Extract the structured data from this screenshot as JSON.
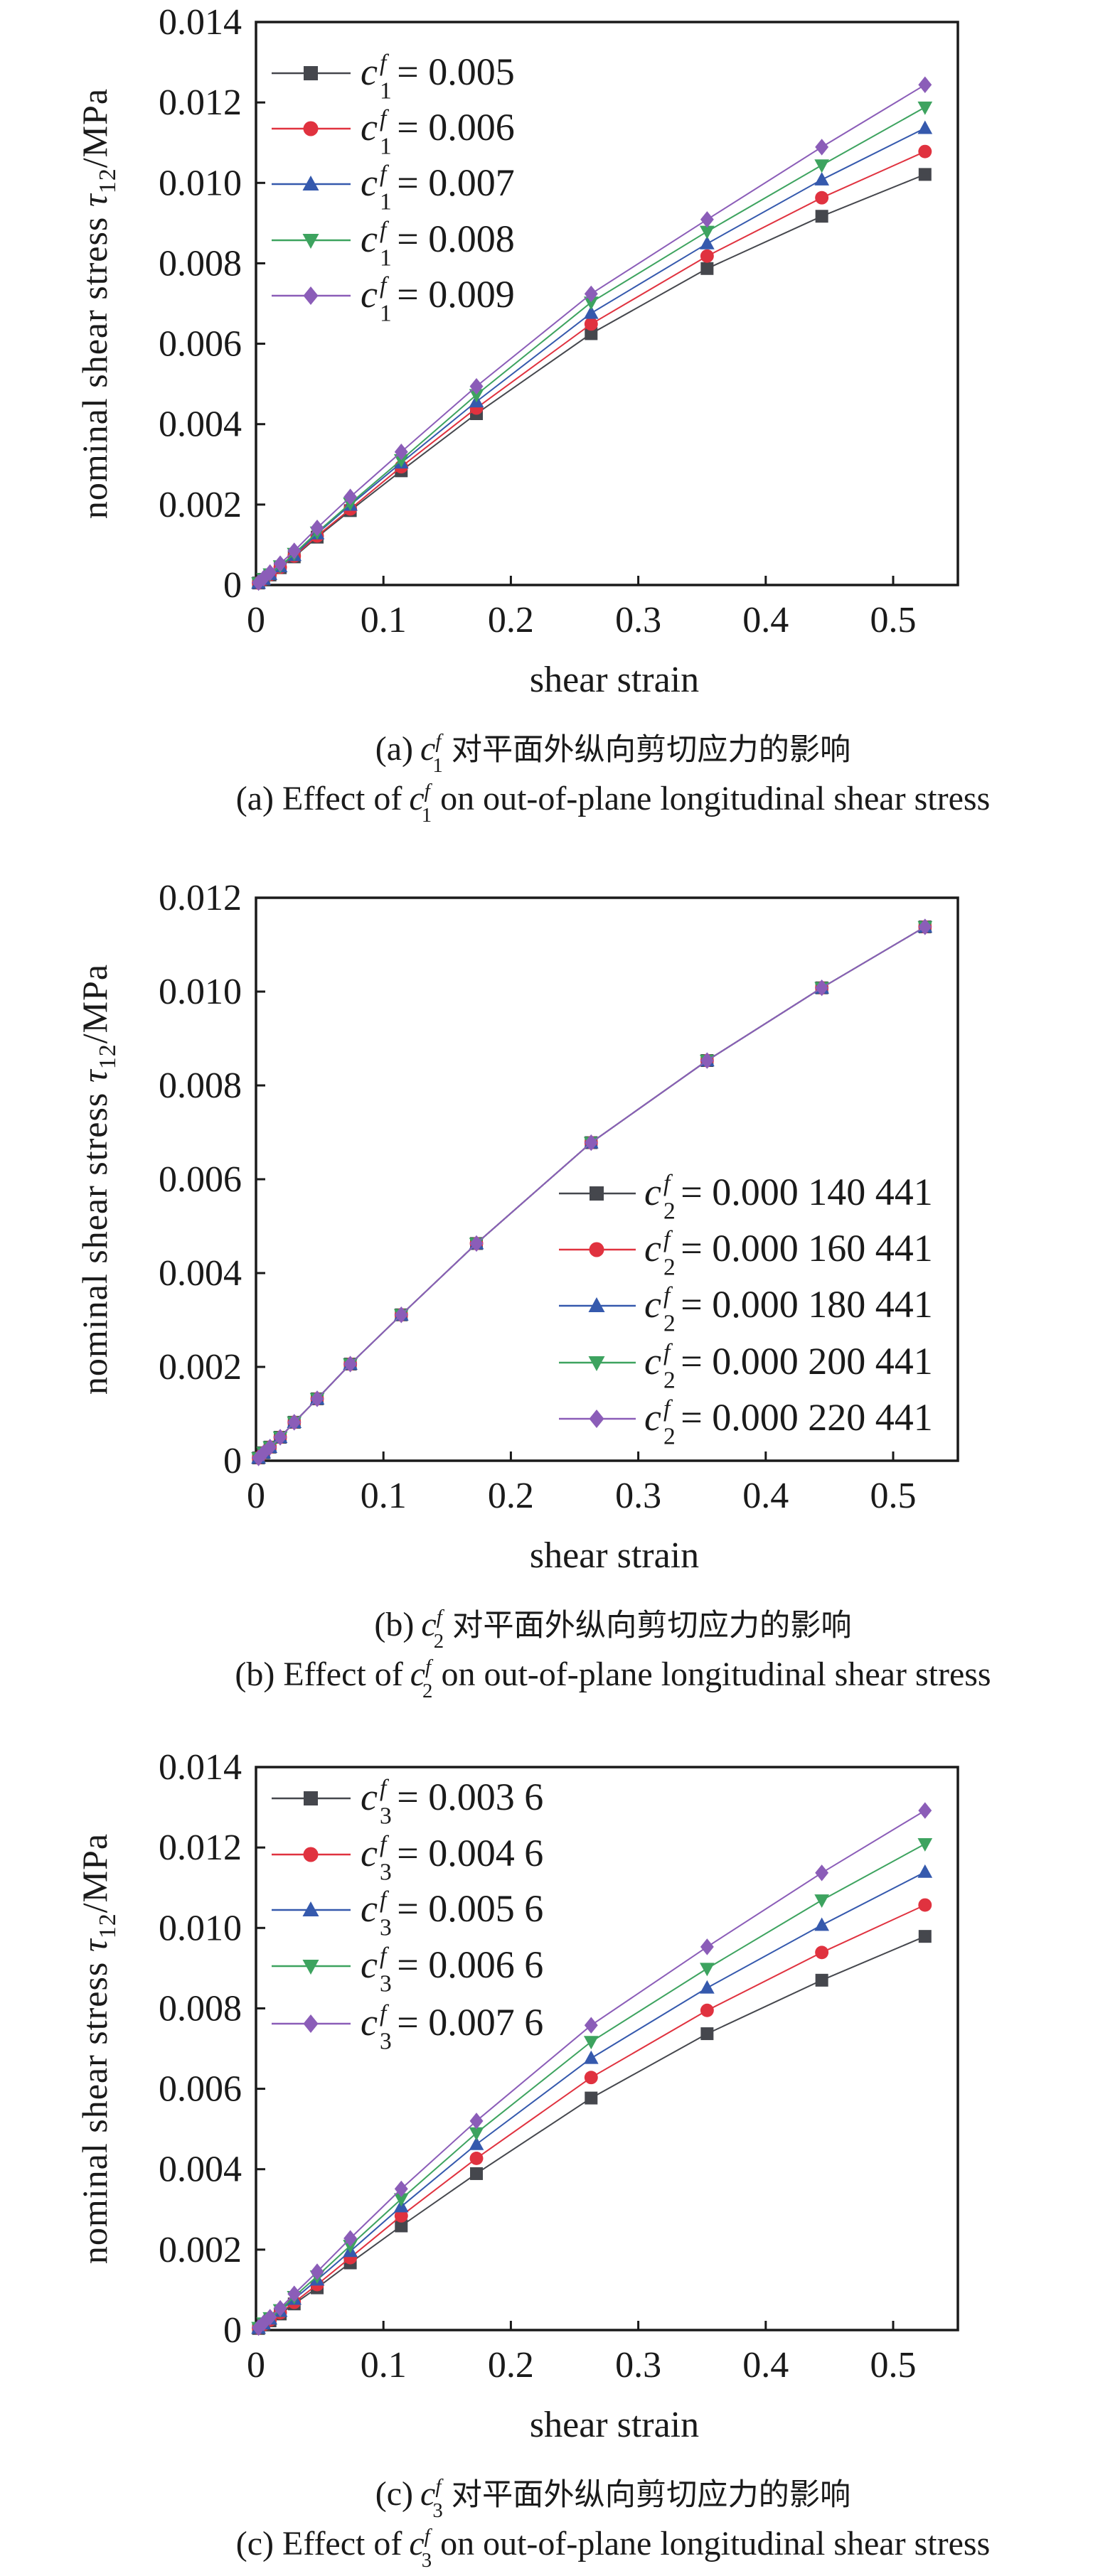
{
  "chart_data": [
    {
      "type": "line",
      "panel": "a",
      "xlabel": "shear strain",
      "ylabel": {
        "prefix": "nominal shear stress ",
        "symbol": "τ",
        "sub": "12",
        "unit": "/MPa"
      },
      "xlim": [
        0,
        0.55
      ],
      "ylim": [
        0,
        0.014
      ],
      "xticks": [
        "0",
        "0.1",
        "0.2",
        "0.3",
        "0.4",
        "0.5"
      ],
      "yticks": [
        "0",
        "0.002",
        "0.004",
        "0.006",
        "0.008",
        "0.010",
        "0.012",
        "0.014"
      ],
      "grid": false,
      "legend_position": "top-left",
      "x": [
        0.002,
        0.006,
        0.011,
        0.019,
        0.03,
        0.048,
        0.074,
        0.114,
        0.173,
        0.263,
        0.354,
        0.444,
        0.525
      ],
      "series": [
        {
          "var": "c",
          "sup": "f",
          "sub": "1",
          "value": "= 0.005",
          "color": "#45474d",
          "marker": "square",
          "values": [
            5e-05,
            0.00014,
            0.00025,
            0.00043,
            0.0007,
            0.00119,
            0.00185,
            0.00284,
            0.00426,
            0.00625,
            0.00787,
            0.00917,
            0.01021
          ]
        },
        {
          "var": "c",
          "sup": "f",
          "sub": "1",
          "value": "= 0.006",
          "color": "#e0323f",
          "marker": "circle",
          "values": [
            5e-05,
            0.00014,
            0.00026,
            0.00044,
            0.00072,
            0.00122,
            0.00189,
            0.00294,
            0.0044,
            0.00649,
            0.00818,
            0.00963,
            0.01078
          ]
        },
        {
          "var": "c",
          "sup": "f",
          "sub": "1",
          "value": "= 0.007",
          "color": "#3559ad",
          "marker": "triangle-up",
          "values": [
            5e-05,
            0.00015,
            0.00027,
            0.00046,
            0.00074,
            0.00128,
            0.00199,
            0.00304,
            0.00456,
            0.00676,
            0.00849,
            0.01008,
            0.01136
          ]
        },
        {
          "var": "c",
          "sup": "f",
          "sub": "1",
          "value": "= 0.008",
          "color": "#3da35f",
          "marker": "triangle-down",
          "values": [
            5e-05,
            0.00015,
            0.00027,
            0.00047,
            0.00078,
            0.00131,
            0.00203,
            0.00311,
            0.00473,
            0.00703,
            0.00879,
            0.01044,
            0.01188
          ]
        },
        {
          "var": "c",
          "sup": "f",
          "sub": "1",
          "value": "= 0.009",
          "color": "#8b5db8",
          "marker": "diamond",
          "values": [
            6e-05,
            0.00017,
            0.00031,
            0.00053,
            0.00085,
            0.00142,
            0.00219,
            0.00331,
            0.00494,
            0.00724,
            0.00909,
            0.01089,
            0.01244
          ]
        }
      ],
      "caption_cn": {
        "label": "(a)",
        "var": "c",
        "sup": "f",
        "sub": "1",
        "text": "对平面外纵向剪切应力的影响"
      },
      "caption_en": {
        "label": "(a) Effect of",
        "var": "c",
        "sup": "f",
        "sub": "1",
        "text": "on out-of-plane longitudinal shear stress"
      }
    },
    {
      "type": "line",
      "panel": "b",
      "xlabel": "shear strain",
      "ylabel": {
        "prefix": "nominal shear stress ",
        "symbol": "τ",
        "sub": "12",
        "unit": "/MPa"
      },
      "xlim": [
        0,
        0.55
      ],
      "ylim": [
        0,
        0.012
      ],
      "xticks": [
        "0",
        "0.1",
        "0.2",
        "0.3",
        "0.4",
        "0.5"
      ],
      "yticks": [
        "0",
        "0.002",
        "0.004",
        "0.006",
        "0.008",
        "0.010",
        "0.012"
      ],
      "grid": false,
      "legend_position": "bottom-right",
      "x": [
        0.002,
        0.006,
        0.011,
        0.019,
        0.03,
        0.048,
        0.074,
        0.114,
        0.173,
        0.263,
        0.354,
        0.444,
        0.525
      ],
      "series": [
        {
          "var": "c",
          "sup": "f",
          "sub": "2",
          "value": "= 0.000 140 441",
          "color": "#45474d",
          "marker": "square",
          "values": [
            6e-05,
            0.00017,
            0.00029,
            0.0005,
            0.00082,
            0.00132,
            0.00206,
            0.00311,
            0.00463,
            0.00678,
            0.00853,
            0.01008,
            0.01138
          ]
        },
        {
          "var": "c",
          "sup": "f",
          "sub": "2",
          "value": "= 0.000 160 441",
          "color": "#e0323f",
          "marker": "circle",
          "values": [
            6e-05,
            0.00017,
            0.00029,
            0.0005,
            0.00082,
            0.00132,
            0.00206,
            0.00311,
            0.00463,
            0.00678,
            0.00853,
            0.01008,
            0.01138
          ]
        },
        {
          "var": "c",
          "sup": "f",
          "sub": "2",
          "value": "= 0.000 180 441",
          "color": "#3559ad",
          "marker": "triangle-up",
          "values": [
            6e-05,
            0.00017,
            0.00029,
            0.0005,
            0.00082,
            0.00132,
            0.00206,
            0.00311,
            0.00463,
            0.00678,
            0.00853,
            0.01008,
            0.01138
          ]
        },
        {
          "var": "c",
          "sup": "f",
          "sub": "2",
          "value": "= 0.000 200 441",
          "color": "#3da35f",
          "marker": "triangle-down",
          "values": [
            6e-05,
            0.00017,
            0.00029,
            0.0005,
            0.00082,
            0.00132,
            0.00206,
            0.00311,
            0.00463,
            0.00678,
            0.00853,
            0.01008,
            0.01138
          ]
        },
        {
          "var": "c",
          "sup": "f",
          "sub": "2",
          "value": "= 0.000 220 441",
          "color": "#8b5db8",
          "marker": "diamond",
          "values": [
            6e-05,
            0.00017,
            0.00029,
            0.0005,
            0.00082,
            0.00132,
            0.00206,
            0.00311,
            0.00463,
            0.00678,
            0.00853,
            0.01008,
            0.01138
          ]
        }
      ],
      "caption_cn": {
        "label": "(b)",
        "var": "c",
        "sup": "f",
        "sub": "2",
        "text": "对平面外纵向剪切应力的影响"
      },
      "caption_en": {
        "label": "(b) Effect of",
        "var": "c",
        "sup": "f",
        "sub": "2",
        "text": "on out-of-plane longitudinal shear stress"
      }
    },
    {
      "type": "line",
      "panel": "c",
      "xlabel": "shear strain",
      "ylabel": {
        "prefix": "nominal shear stress ",
        "symbol": "τ",
        "sub": "12",
        "unit": "/MPa"
      },
      "xlim": [
        0,
        0.55
      ],
      "ylim": [
        0,
        0.014
      ],
      "xticks": [
        "0",
        "0.1",
        "0.2",
        "0.3",
        "0.4",
        "0.5"
      ],
      "yticks": [
        "0",
        "0.002",
        "0.004",
        "0.006",
        "0.008",
        "0.010",
        "0.012",
        "0.014"
      ],
      "grid": false,
      "legend_position": "top-left",
      "x": [
        0.002,
        0.006,
        0.011,
        0.019,
        0.03,
        0.048,
        0.074,
        0.114,
        0.173,
        0.263,
        0.354,
        0.444,
        0.525
      ],
      "series": [
        {
          "var": "c",
          "sup": "f",
          "sub": "3",
          "value": "= 0.003 6",
          "color": "#45474d",
          "marker": "square",
          "values": [
            4e-05,
            0.00013,
            0.00023,
            0.0004,
            0.00065,
            0.00105,
            0.00167,
            0.00259,
            0.00389,
            0.00577,
            0.00737,
            0.0087,
            0.00979
          ]
        },
        {
          "var": "c",
          "sup": "f",
          "sub": "3",
          "value": "= 0.004 6",
          "color": "#e0323f",
          "marker": "circle",
          "values": [
            5e-05,
            0.00014,
            0.00025,
            0.00043,
            0.00069,
            0.00113,
            0.0018,
            0.00284,
            0.00427,
            0.00628,
            0.00795,
            0.00939,
            0.01057
          ]
        },
        {
          "var": "c",
          "sup": "f",
          "sub": "3",
          "value": "= 0.005 6",
          "color": "#3559ad",
          "marker": "triangle-up",
          "values": [
            5e-05,
            0.00016,
            0.00028,
            0.00047,
            0.00077,
            0.00125,
            0.00196,
            0.00307,
            0.00462,
            0.00676,
            0.00851,
            0.01007,
            0.01139
          ]
        },
        {
          "var": "c",
          "sup": "f",
          "sub": "3",
          "value": "= 0.006 6",
          "color": "#3da35f",
          "marker": "triangle-down",
          "values": [
            6e-05,
            0.00017,
            0.0003,
            0.0005,
            0.00083,
            0.00134,
            0.0021,
            0.00326,
            0.0049,
            0.00717,
            0.00899,
            0.01069,
            0.01209
          ]
        },
        {
          "var": "c",
          "sup": "f",
          "sub": "3",
          "value": "= 0.007 6",
          "color": "#8b5db8",
          "marker": "diamond",
          "values": [
            6e-05,
            0.00018,
            0.00032,
            0.00054,
            0.0009,
            0.00145,
            0.00228,
            0.00351,
            0.0052,
            0.00758,
            0.00953,
            0.01137,
            0.01292
          ]
        }
      ],
      "caption_cn": {
        "label": "(c)",
        "var": "c",
        "sup": "f",
        "sub": "3",
        "text": "对平面外纵向剪切应力的影响"
      },
      "caption_en": {
        "label": "(c) Effect of",
        "var": "c",
        "sup": "f",
        "sub": "3",
        "text": "on out-of-plane longitudinal shear stress"
      }
    }
  ]
}
